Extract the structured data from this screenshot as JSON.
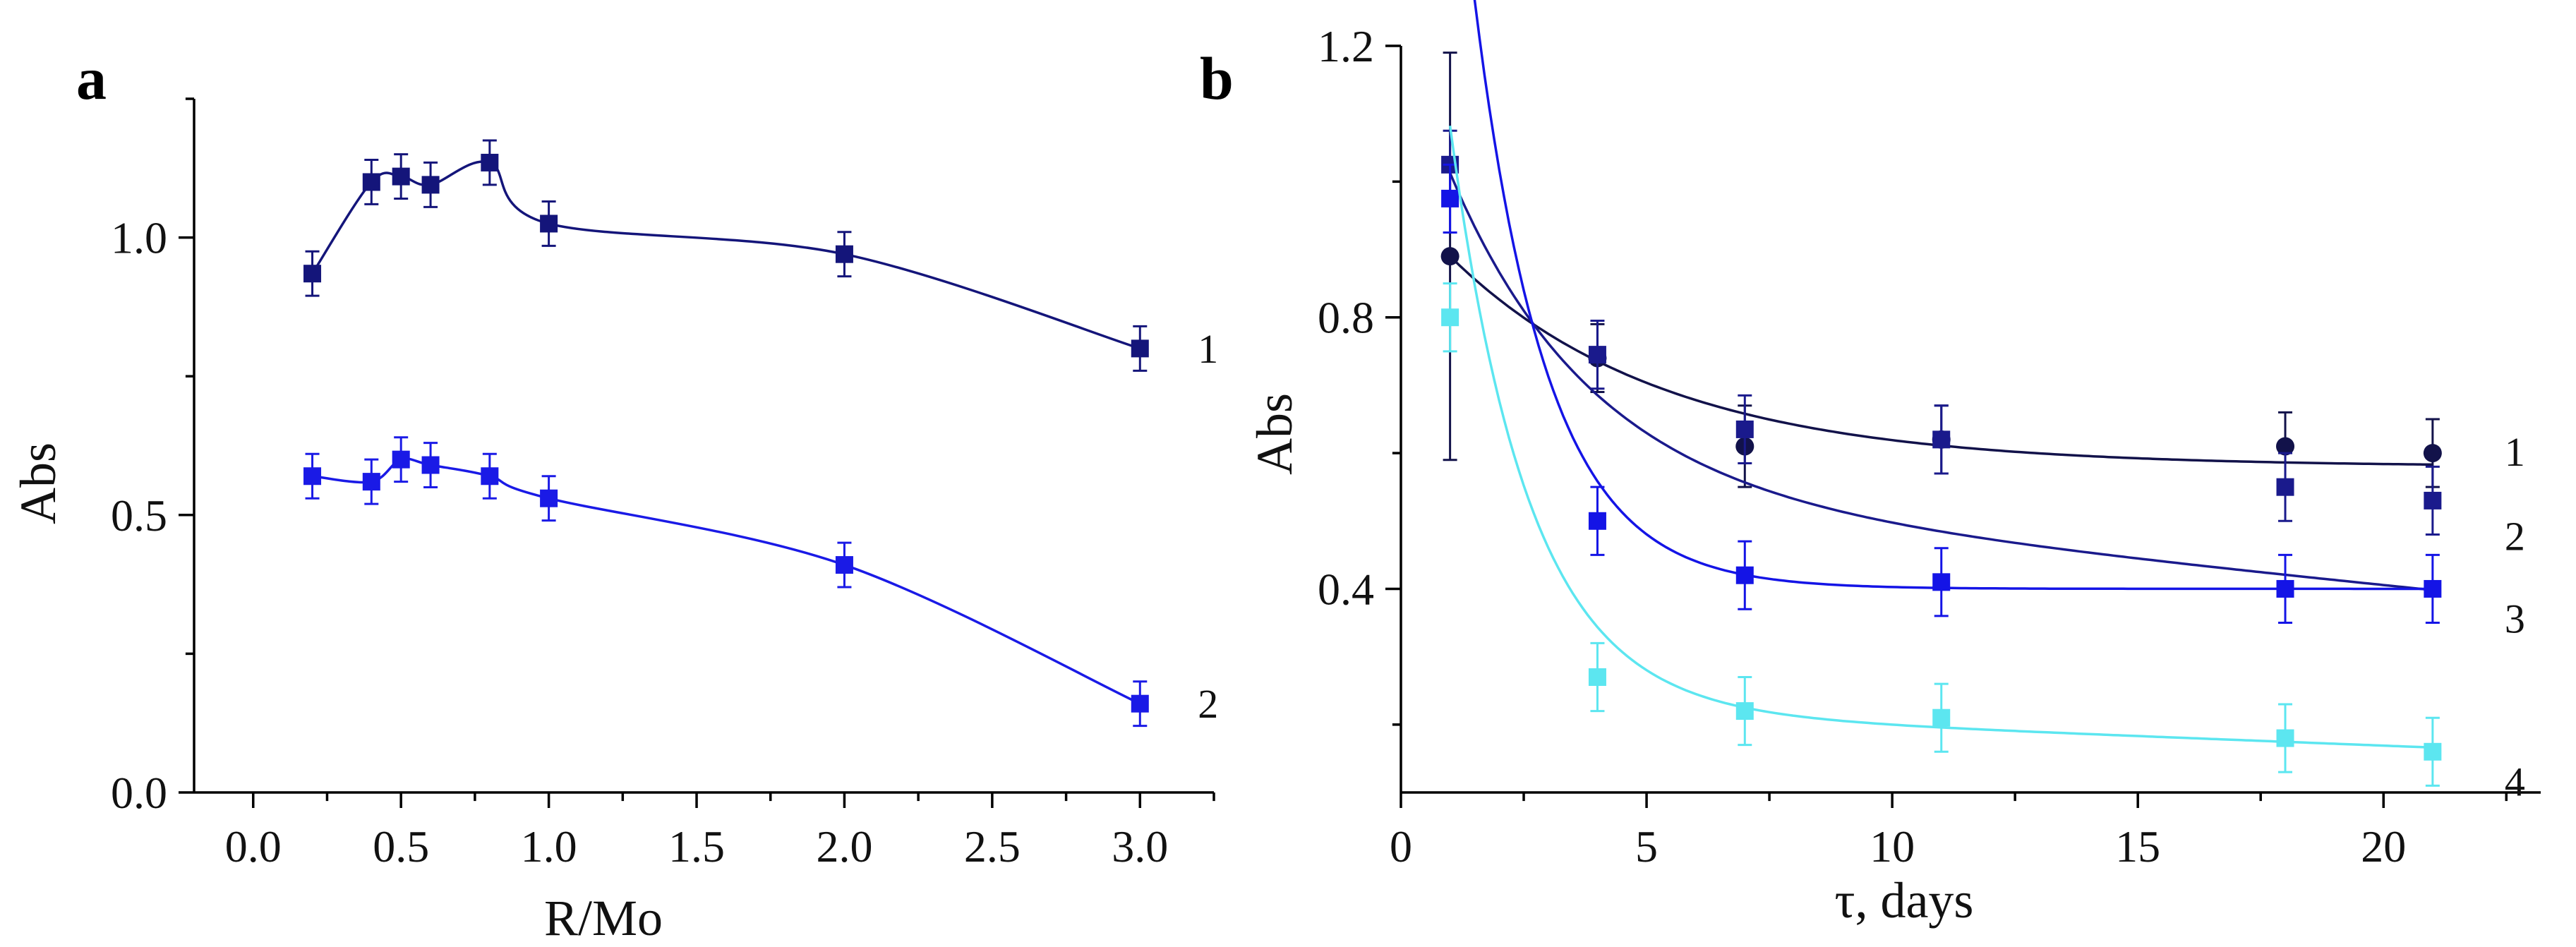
{
  "figure": {
    "panel_a_label": "a",
    "panel_b_label": "b"
  },
  "chart_data": [
    {
      "type": "line",
      "panel": "a",
      "title": "",
      "xlabel": "R/Mo",
      "ylabel": "Abs",
      "xlim": [
        -0.2,
        3.25
      ],
      "ylim": [
        0.0,
        1.25
      ],
      "xticks": [
        0.0,
        0.5,
        1.0,
        1.5,
        2.0,
        2.5,
        3.0
      ],
      "xtick_labels": [
        "0.0",
        "0.5",
        "1.0",
        "1.5",
        "2.0",
        "2.5",
        "3.0"
      ],
      "yticks": [
        0.0,
        0.5,
        1.0
      ],
      "ytick_labels": [
        "0.0",
        "0.5",
        "1.0"
      ],
      "series": [
        {
          "name": "1",
          "color": "#14157a",
          "marker": "square",
          "x": [
            0.2,
            0.4,
            0.5,
            0.6,
            0.8,
            1.0,
            2.0,
            3.0
          ],
          "y": [
            0.935,
            1.1,
            1.11,
            1.095,
            1.135,
            1.025,
            0.97,
            0.8
          ],
          "err": [
            0.04,
            0.04,
            0.04,
            0.04,
            0.04,
            0.04,
            0.04,
            0.04
          ]
        },
        {
          "name": "2",
          "color": "#1a1ae6",
          "marker": "square",
          "x": [
            0.2,
            0.4,
            0.5,
            0.6,
            0.8,
            1.0,
            2.0,
            3.0
          ],
          "y": [
            0.57,
            0.56,
            0.6,
            0.59,
            0.57,
            0.53,
            0.41,
            0.16
          ],
          "err": [
            0.04,
            0.04,
            0.04,
            0.04,
            0.04,
            0.04,
            0.04,
            0.04
          ]
        }
      ]
    },
    {
      "type": "line",
      "panel": "b",
      "title": "",
      "xlabel": "τ, days",
      "ylabel": "Abs",
      "xlim": [
        0,
        23.2
      ],
      "ylim": [
        0.1,
        1.2
      ],
      "xticks": [
        0,
        5,
        10,
        15,
        20
      ],
      "xtick_labels": [
        "0",
        "5",
        "10",
        "15",
        "20"
      ],
      "yticks": [
        0.4,
        0.8,
        1.2
      ],
      "ytick_labels": [
        "0.4",
        "0.8",
        "1.2"
      ],
      "series": [
        {
          "name": "1",
          "color": "#12124a",
          "marker": "circle",
          "x": [
            1,
            4,
            7,
            11,
            18,
            21
          ],
          "y": [
            0.89,
            0.74,
            0.61,
            0.62,
            0.61,
            0.6
          ],
          "err": [
            0.3,
            0.05,
            0.06,
            0.05,
            0.05,
            0.05
          ],
          "fit": [
            0.58,
            0.31,
            0.23
          ]
        },
        {
          "name": "2",
          "color": "#1a1a8c",
          "marker": "square",
          "x": [
            1,
            4,
            7,
            11,
            18,
            21
          ],
          "y": [
            1.025,
            0.745,
            0.635,
            0.62,
            0.55,
            0.53
          ],
          "err": [
            0.05,
            0.05,
            0.05,
            0.05,
            0.05,
            0.05
          ],
          "fit": [
            0.55,
            0.47,
            0.35,
            -0.00725
          ]
        },
        {
          "name": "3",
          "color": "#1414e6",
          "marker": "square",
          "x": [
            1,
            4,
            7,
            11,
            18,
            21
          ],
          "y": [
            0.975,
            0.5,
            0.42,
            0.41,
            0.4,
            0.4
          ],
          "err": [
            0.05,
            0.05,
            0.05,
            0.05,
            0.05,
            0.05
          ],
          "fit": [
            0.4,
            1.22,
            0.68
          ]
        },
        {
          "name": "4",
          "color": "#5ce6f0",
          "marker": "square",
          "x": [
            1,
            4,
            7,
            11,
            18,
            21
          ],
          "y": [
            0.8,
            0.27,
            0.22,
            0.21,
            0.18,
            0.16
          ],
          "err": [
            0.05,
            0.05,
            0.05,
            0.05,
            0.05,
            0.05
          ],
          "fit": [
            0.225,
            0.86,
            0.63,
            -0.0028
          ]
        }
      ]
    }
  ]
}
